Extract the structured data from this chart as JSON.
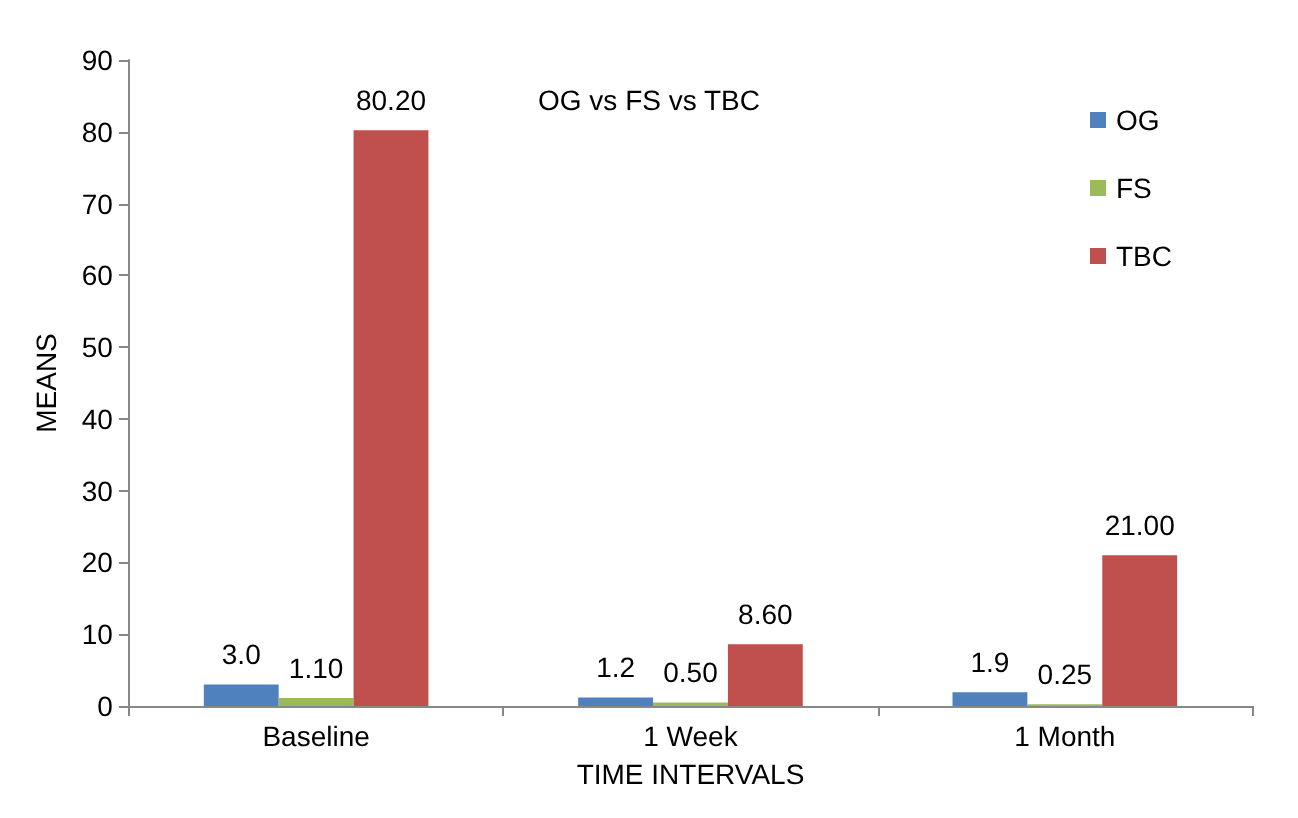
{
  "chart_data": {
    "type": "bar",
    "title": "OG vs FS vs TBC",
    "xlabel": "TIME INTERVALS",
    "ylabel": "MEANS",
    "categories": [
      "Baseline",
      "1 Week",
      "1 Month"
    ],
    "series": [
      {
        "name": "OG",
        "color": "#4f81bd",
        "values": [
          3.0,
          1.2,
          1.9
        ],
        "value_labels": [
          "3.0",
          "1.2",
          "1.9"
        ]
      },
      {
        "name": "FS",
        "color": "#9bbb59",
        "values": [
          1.1,
          0.5,
          0.25
        ],
        "value_labels": [
          "1.10",
          "0.50",
          "0.25"
        ]
      },
      {
        "name": "TBC",
        "color": "#c0504d",
        "values": [
          80.2,
          8.6,
          21.0
        ],
        "value_labels": [
          "80.20",
          "8.60",
          "21.00"
        ]
      }
    ],
    "ylim": [
      0,
      90
    ],
    "yticks": [
      0,
      10,
      20,
      30,
      40,
      50,
      60,
      70,
      80,
      90
    ],
    "grid": false,
    "legend": "top right"
  }
}
